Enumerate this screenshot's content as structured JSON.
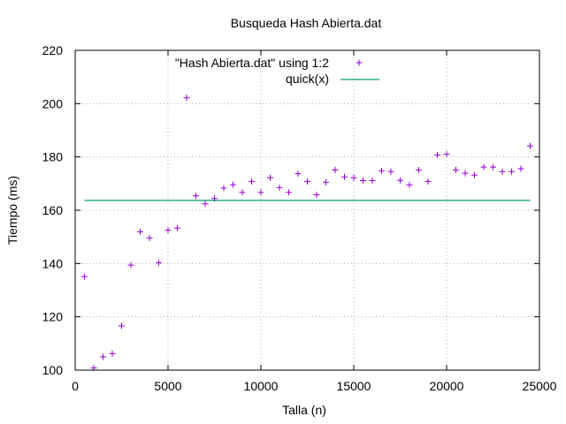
{
  "chart_data": {
    "type": "scatter",
    "title": "Busqueda Hash Abierta.dat",
    "xlabel": "Talla (n)",
    "ylabel": "Tiempo (ms)",
    "xlim": [
      0,
      25000
    ],
    "ylim": [
      100,
      220
    ],
    "xticks": [
      0,
      5000,
      10000,
      15000,
      20000,
      25000
    ],
    "yticks": [
      100,
      120,
      140,
      160,
      180,
      200,
      220
    ],
    "grid": true,
    "legend_position": "top-right",
    "series": [
      {
        "name": "\"Hash Abierta.dat\" using 1:2",
        "kind": "points",
        "marker": "plus",
        "color": "#9400d3",
        "points": [
          [
            500,
            135.1
          ],
          [
            1000,
            100.8
          ],
          [
            1500,
            105.0
          ],
          [
            2000,
            106.2
          ],
          [
            2500,
            116.6
          ],
          [
            3000,
            139.4
          ],
          [
            3500,
            151.9
          ],
          [
            4000,
            149.6
          ],
          [
            4500,
            140.3
          ],
          [
            5000,
            152.5
          ],
          [
            5500,
            153.3
          ],
          [
            6000,
            202.2
          ],
          [
            6500,
            165.4
          ],
          [
            7000,
            162.4
          ],
          [
            7500,
            164.4
          ],
          [
            8000,
            168.3
          ],
          [
            8500,
            169.6
          ],
          [
            9000,
            166.7
          ],
          [
            9500,
            170.8
          ],
          [
            10000,
            166.7
          ],
          [
            10500,
            172.2
          ],
          [
            11000,
            168.5
          ],
          [
            11500,
            166.7
          ],
          [
            12000,
            173.7
          ],
          [
            12500,
            170.8
          ],
          [
            13000,
            165.8
          ],
          [
            13500,
            170.5
          ],
          [
            14000,
            175.1
          ],
          [
            14500,
            172.5
          ],
          [
            15000,
            172.2
          ],
          [
            15500,
            171.1
          ],
          [
            16000,
            171.1
          ],
          [
            16500,
            174.8
          ],
          [
            17000,
            174.5
          ],
          [
            17500,
            171.2
          ],
          [
            18000,
            169.5
          ],
          [
            18500,
            175.1
          ],
          [
            19000,
            170.8
          ],
          [
            19500,
            180.7
          ],
          [
            20000,
            181.0
          ],
          [
            20500,
            175.1
          ],
          [
            21000,
            173.9
          ],
          [
            21500,
            173.2
          ],
          [
            22000,
            176.2
          ],
          [
            22500,
            176.2
          ],
          [
            23000,
            174.5
          ],
          [
            23500,
            174.5
          ],
          [
            24000,
            175.6
          ],
          [
            24500,
            184.1
          ]
        ]
      },
      {
        "name": "quick(x)",
        "kind": "line",
        "color": "#009e73",
        "y": 163.7,
        "x_range": [
          500,
          24500
        ]
      }
    ]
  }
}
